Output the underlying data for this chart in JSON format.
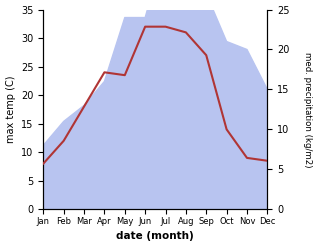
{
  "months": [
    "Jan",
    "Feb",
    "Mar",
    "Apr",
    "May",
    "Jun",
    "Jul",
    "Aug",
    "Sep",
    "Oct",
    "Nov",
    "Dec"
  ],
  "max_temp": [
    8,
    12,
    18,
    24,
    23.5,
    32,
    32,
    31,
    27,
    14,
    9,
    8.5
  ],
  "precipitation": [
    8,
    11,
    13,
    16,
    24,
    24,
    33,
    27,
    27,
    21,
    20,
    15
  ],
  "temp_color": "#b03535",
  "precip_color": "#b8c4f0",
  "temp_ylim": [
    0,
    35
  ],
  "precip_ylim": [
    0,
    25
  ],
  "xlabel": "date (month)",
  "ylabel_left": "max temp (C)",
  "ylabel_right": "med. precipitation (kg/m2)",
  "bg_color": "#ffffff"
}
